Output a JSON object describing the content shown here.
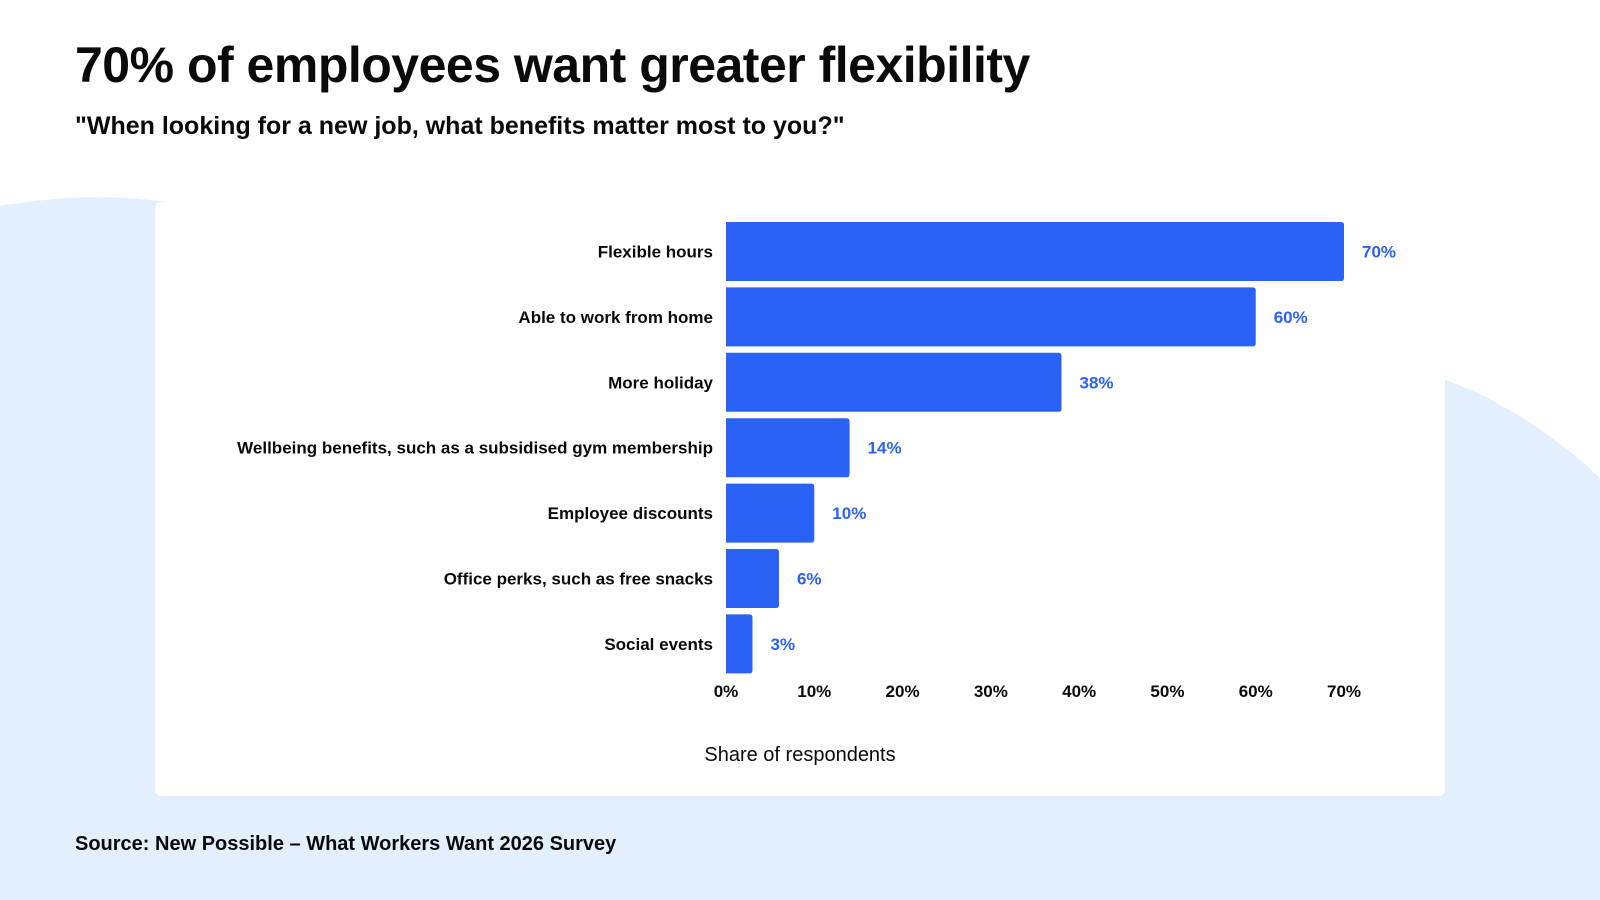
{
  "title": "70% of employees want greater flexibility",
  "subtitle": "\"When looking for a new job, what benefits matter most to you?\"",
  "source": "Source: New Possible – What Workers Want 2026 Survey",
  "colors": {
    "bar": "#2962f5",
    "value_label": "#2962f5",
    "background_shape": "#e3effd"
  },
  "chart_data": {
    "type": "bar",
    "orientation": "horizontal",
    "categories": [
      "Flexible hours",
      "Able to work from home",
      "More holiday",
      "Wellbeing benefits, such as a subsidised gym membership",
      "Employee discounts",
      "Office perks, such as free snacks",
      "Social events"
    ],
    "values": [
      70,
      60,
      38,
      14,
      10,
      6,
      3
    ],
    "value_labels": [
      "70%",
      "60%",
      "38%",
      "14%",
      "10%",
      "6%",
      "3%"
    ],
    "xlabel": "Share of respondents",
    "ylabel": "",
    "xlim": [
      0,
      70
    ],
    "x_ticks": [
      "0%",
      "10%",
      "20%",
      "30%",
      "40%",
      "50%",
      "60%",
      "70%"
    ],
    "grid": false,
    "legend": "none"
  }
}
